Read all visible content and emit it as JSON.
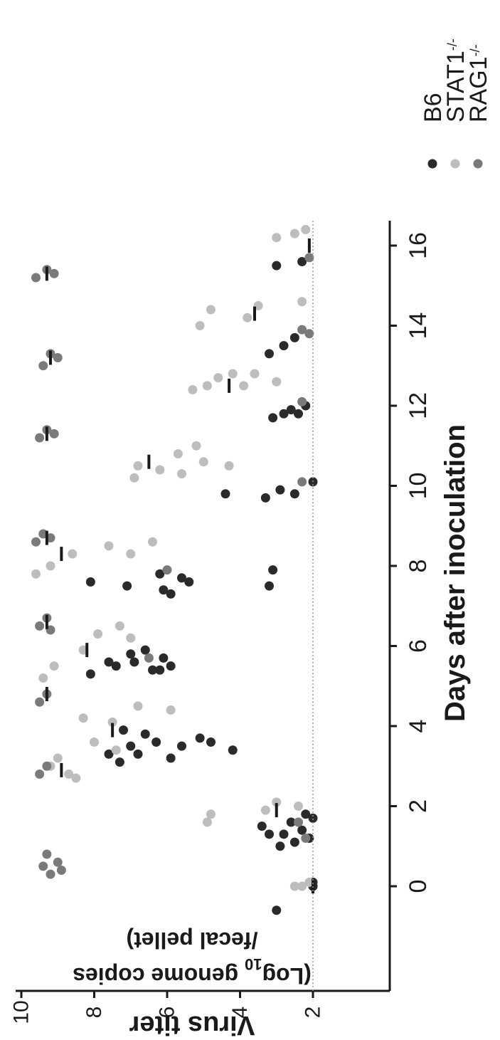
{
  "chart_data": {
    "type": "scatter",
    "orientation": "rotated-90-clockwise",
    "xlabel": "Days after inoculation",
    "ylabel_line1": "Virus titer",
    "ylabel_line2": "(Log",
    "ylabel_line2_sub": "10",
    "ylabel_line2_rest": " genome copies",
    "ylabel_line3": "/fecal pellet)",
    "x_ticks": [
      0,
      2,
      4,
      6,
      8,
      10,
      12,
      14,
      16
    ],
    "y_ticks": [
      2,
      4,
      6,
      8,
      10
    ],
    "xlim": [
      -1.5,
      16.8
    ],
    "ylim": [
      0.6,
      10
    ],
    "limit_of_detection": 2,
    "grid": false,
    "legend_position": "right",
    "colors": {
      "B6": "#2a2a2a",
      "STAT1": "#bdbdbd",
      "RAG1": "#7a7a7a"
    },
    "series": [
      {
        "name": "B6",
        "label": "B6",
        "superscript": "",
        "color": "#2a2a2a",
        "points": [
          {
            "x": -0.6,
            "y": 3.0
          },
          {
            "x": 0,
            "y": 2
          },
          {
            "x": 0,
            "y": 2
          },
          {
            "x": 0.1,
            "y": 2
          },
          {
            "x": 1.3,
            "y": 3.2
          },
          {
            "x": 1.5,
            "y": 3.4
          },
          {
            "x": 1.3,
            "y": 2.8
          },
          {
            "x": 1.1,
            "y": 2.5
          },
          {
            "x": 1.4,
            "y": 2.3
          },
          {
            "x": 1.2,
            "y": 2.1
          },
          {
            "x": 1.6,
            "y": 2.6
          },
          {
            "x": 1.8,
            "y": 2.2
          },
          {
            "x": 1.0,
            "y": 2.9
          },
          {
            "x": 1.7,
            "y": 2.0
          },
          {
            "x": 3.1,
            "y": 7.3
          },
          {
            "x": 3.3,
            "y": 6.8
          },
          {
            "x": 3.5,
            "y": 7.0
          },
          {
            "x": 3.3,
            "y": 7.6
          },
          {
            "x": 3.6,
            "y": 6.3
          },
          {
            "x": 3.5,
            "y": 5.6
          },
          {
            "x": 3.8,
            "y": 6.6
          },
          {
            "x": 3.4,
            "y": 4.2
          },
          {
            "x": 3.7,
            "y": 5.1
          },
          {
            "x": 3.9,
            "y": 7.2
          },
          {
            "x": 3.2,
            "y": 5.9
          },
          {
            "x": 3.6,
            "y": 4.8
          },
          {
            "x": 5.3,
            "y": 8.1
          },
          {
            "x": 5.5,
            "y": 7.4
          },
          {
            "x": 5.6,
            "y": 6.9
          },
          {
            "x": 5.4,
            "y": 6.4
          },
          {
            "x": 5.7,
            "y": 6.1
          },
          {
            "x": 5.8,
            "y": 7.0
          },
          {
            "x": 5.5,
            "y": 5.9
          },
          {
            "x": 5.9,
            "y": 6.6
          },
          {
            "x": 5.6,
            "y": 7.6
          },
          {
            "x": 5.4,
            "y": 6.2
          },
          {
            "x": 7.6,
            "y": 8.1
          },
          {
            "x": 7.5,
            "y": 7.1
          },
          {
            "x": 7.4,
            "y": 6.1
          },
          {
            "x": 7.7,
            "y": 5.6
          },
          {
            "x": 7.8,
            "y": 6.2
          },
          {
            "x": 7.6,
            "y": 5.4
          },
          {
            "x": 7.3,
            "y": 5.9
          },
          {
            "x": 7.5,
            "y": 3.2
          },
          {
            "x": 7.9,
            "y": 3.1
          },
          {
            "x": 9.8,
            "y": 4.4
          },
          {
            "x": 9.7,
            "y": 3.3
          },
          {
            "x": 9.9,
            "y": 2.9
          },
          {
            "x": 9.8,
            "y": 2.5
          },
          {
            "x": 10.1,
            "y": 2.0
          },
          {
            "x": 11.7,
            "y": 3.1
          },
          {
            "x": 11.8,
            "y": 2.8
          },
          {
            "x": 11.9,
            "y": 2.6
          },
          {
            "x": 11.8,
            "y": 2.4
          },
          {
            "x": 12.0,
            "y": 2.2
          },
          {
            "x": 13.3,
            "y": 3.2
          },
          {
            "x": 13.5,
            "y": 2.8
          },
          {
            "x": 13.7,
            "y": 2.5
          },
          {
            "x": 15.5,
            "y": 3.0
          },
          {
            "x": 15.6,
            "y": 2.3
          }
        ]
      },
      {
        "name": "STAT1",
        "label": "STAT1",
        "superscript": "-/-",
        "color": "#bdbdbd",
        "points": [
          {
            "x": 0,
            "y": 2.3
          },
          {
            "x": 0,
            "y": 2.5
          },
          {
            "x": 0.1,
            "y": 2.1
          },
          {
            "x": 1.6,
            "y": 4.9
          },
          {
            "x": 1.8,
            "y": 4.8
          },
          {
            "x": 1.9,
            "y": 3.3
          },
          {
            "x": 2.1,
            "y": 3.0
          },
          {
            "x": 2.0,
            "y": 2.4
          },
          {
            "x": 2.7,
            "y": 8.5
          },
          {
            "x": 2.8,
            "y": 8.7
          },
          {
            "x": 3.0,
            "y": 9.2
          },
          {
            "x": 3.2,
            "y": 9.0
          },
          {
            "x": 3.4,
            "y": 7.4
          },
          {
            "x": 3.6,
            "y": 8.0
          },
          {
            "x": 4.2,
            "y": 8.3
          },
          {
            "x": 4.1,
            "y": 7.5
          },
          {
            "x": 4.5,
            "y": 6.8
          },
          {
            "x": 4.4,
            "y": 5.9
          },
          {
            "x": 5.2,
            "y": 9.4
          },
          {
            "x": 5.5,
            "y": 9.1
          },
          {
            "x": 5.9,
            "y": 8.3
          },
          {
            "x": 6.3,
            "y": 7.9
          },
          {
            "x": 6.5,
            "y": 7.3
          },
          {
            "x": 6.2,
            "y": 7.0
          },
          {
            "x": 7.8,
            "y": 9.6
          },
          {
            "x": 8.0,
            "y": 9.2
          },
          {
            "x": 8.3,
            "y": 8.6
          },
          {
            "x": 8.5,
            "y": 7.6
          },
          {
            "x": 8.3,
            "y": 7.0
          },
          {
            "x": 8.6,
            "y": 6.4
          },
          {
            "x": 10.2,
            "y": 6.9
          },
          {
            "x": 10.5,
            "y": 6.8
          },
          {
            "x": 10.4,
            "y": 6.2
          },
          {
            "x": 10.3,
            "y": 5.6
          },
          {
            "x": 10.6,
            "y": 5.0
          },
          {
            "x": 10.5,
            "y": 4.3
          },
          {
            "x": 10.8,
            "y": 5.7
          },
          {
            "x": 11.0,
            "y": 5.2
          },
          {
            "x": 12.4,
            "y": 5.3
          },
          {
            "x": 12.5,
            "y": 4.9
          },
          {
            "x": 12.7,
            "y": 4.6
          },
          {
            "x": 12.8,
            "y": 4.2
          },
          {
            "x": 12.5,
            "y": 3.9
          },
          {
            "x": 12.8,
            "y": 3.6
          },
          {
            "x": 12.6,
            "y": 3.0
          },
          {
            "x": 14.0,
            "y": 5.1
          },
          {
            "x": 14.4,
            "y": 4.8
          },
          {
            "x": 14.2,
            "y": 3.8
          },
          {
            "x": 14.5,
            "y": 3.5
          },
          {
            "x": 14.6,
            "y": 2.3
          },
          {
            "x": 16.2,
            "y": 3.0
          },
          {
            "x": 16.3,
            "y": 2.5
          },
          {
            "x": 16.4,
            "y": 2.2
          }
        ]
      },
      {
        "name": "RAG1",
        "label": "RAG1",
        "superscript": "-/-",
        "color": "#7a7a7a",
        "points": [
          {
            "x": 0.3,
            "y": 9.2
          },
          {
            "x": 0.5,
            "y": 9.4
          },
          {
            "x": 0.6,
            "y": 9.0
          },
          {
            "x": 0.4,
            "y": 8.9
          },
          {
            "x": 0.8,
            "y": 9.3
          },
          {
            "x": 2.8,
            "y": 9.5
          },
          {
            "x": 3.0,
            "y": 9.3
          },
          {
            "x": 4.6,
            "y": 9.5
          },
          {
            "x": 4.8,
            "y": 9.3
          },
          {
            "x": 6.5,
            "y": 9.5
          },
          {
            "x": 6.7,
            "y": 9.3
          },
          {
            "x": 6.4,
            "y": 9.2
          },
          {
            "x": 8.6,
            "y": 9.6
          },
          {
            "x": 8.8,
            "y": 9.4
          },
          {
            "x": 8.7,
            "y": 9.2
          },
          {
            "x": 11.2,
            "y": 9.5
          },
          {
            "x": 11.4,
            "y": 9.3
          },
          {
            "x": 11.3,
            "y": 9.1
          },
          {
            "x": 13.0,
            "y": 9.4
          },
          {
            "x": 13.3,
            "y": 9.2
          },
          {
            "x": 13.2,
            "y": 9.0
          },
          {
            "x": 15.2,
            "y": 9.6
          },
          {
            "x": 15.4,
            "y": 9.3
          },
          {
            "x": 15.3,
            "y": 9.1
          },
          {
            "x": 1.2,
            "y": 2.2
          },
          {
            "x": 1.6,
            "y": 2.4
          },
          {
            "x": 5.7,
            "y": 6.5
          },
          {
            "x": 7.9,
            "y": 6.0
          },
          {
            "x": 10.1,
            "y": 2.3
          },
          {
            "x": 12.1,
            "y": 2.3
          },
          {
            "x": 13.8,
            "y": 2.1
          },
          {
            "x": 13.9,
            "y": 2.3
          },
          {
            "x": 15.7,
            "y": 2.1
          }
        ]
      }
    ],
    "medians": [
      {
        "x": 0,
        "y": 2.0
      },
      {
        "x": 1.9,
        "y": 3.0
      },
      {
        "x": 2.9,
        "y": 8.9
      },
      {
        "x": 3.9,
        "y": 7.5
      },
      {
        "x": 5.9,
        "y": 8.2
      },
      {
        "x": 8.3,
        "y": 8.9
      },
      {
        "x": 10.6,
        "y": 6.5
      },
      {
        "x": 12.5,
        "y": 4.3
      },
      {
        "x": 14.3,
        "y": 3.6
      },
      {
        "x": 16.0,
        "y": 2.1
      },
      {
        "x": 4.8,
        "y": 9.3
      },
      {
        "x": 6.6,
        "y": 9.3
      },
      {
        "x": 8.7,
        "y": 9.3
      },
      {
        "x": 11.3,
        "y": 9.3
      },
      {
        "x": 13.2,
        "y": 9.2
      },
      {
        "x": 15.3,
        "y": 9.3
      }
    ]
  }
}
